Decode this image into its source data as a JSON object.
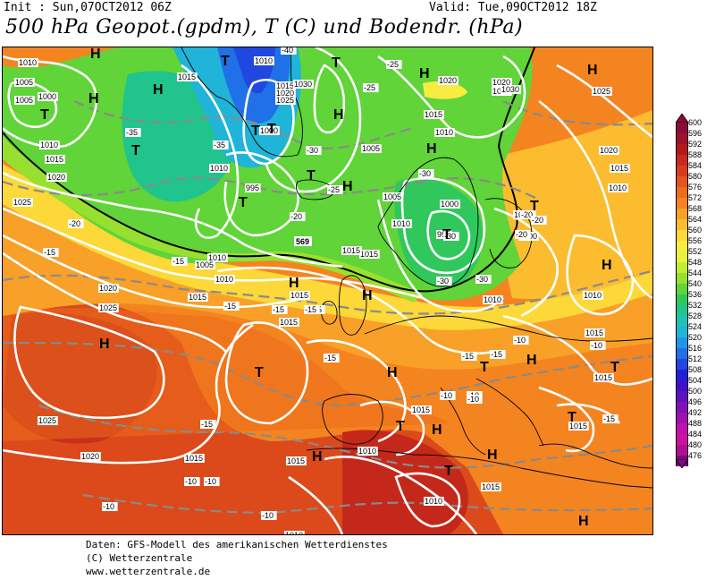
{
  "header": {
    "init": "Init : Sun,07OCT2012 06Z",
    "valid": "Valid: Tue,09OCT2012 18Z",
    "title": "500 hPa Geopot.(gpdm), T (C) und Bodendr. (hPa)"
  },
  "legend": {
    "levels": [
      "600",
      "596",
      "592",
      "588",
      "584",
      "580",
      "576",
      "572",
      "568",
      "564",
      "560",
      "556",
      "552",
      "548",
      "544",
      "540",
      "536",
      "532",
      "528",
      "524",
      "520",
      "516",
      "512",
      "508",
      "504",
      "500",
      "496",
      "492",
      "488",
      "484",
      "480",
      "476"
    ],
    "colors": [
      "#8b0a3a",
      "#a0102a",
      "#b41818",
      "#c82820",
      "#d83c1c",
      "#e4541c",
      "#ec6c1c",
      "#f48420",
      "#f8a028",
      "#fcbc30",
      "#fcd838",
      "#f8ec40",
      "#e8f43c",
      "#c4ec30",
      "#98e030",
      "#60d438",
      "#30c85c",
      "#20c48c",
      "#20c0b8",
      "#20b4d8",
      "#2094e8",
      "#2070e8",
      "#2048e0",
      "#2020d8",
      "#4010c8",
      "#6010c0",
      "#8010b8",
      "#a010b0",
      "#c010b0",
      "#d010a0",
      "#b01090",
      "#800880"
    ]
  },
  "map": {
    "pressure_labels": [
      "1010",
      "1005",
      "1000",
      "1010",
      "1015",
      "1020",
      "1025",
      "1015",
      "1010",
      "1005",
      "1000",
      "995",
      "1010",
      "1015",
      "1020",
      "1025",
      "1030",
      "1020",
      "1015",
      "1010",
      "1005",
      "1000",
      "995",
      "1005",
      "1010",
      "1015",
      "1020",
      "1025",
      "1030",
      "1025",
      "1020",
      "1015",
      "1010",
      "1005",
      "1000",
      "1015",
      "1010",
      "1005",
      "1010",
      "1015",
      "1020",
      "1025",
      "1015",
      "1015",
      "1010",
      "1010",
      "1015",
      "1010",
      "1015",
      "1020",
      "1025",
      "1015",
      "1015",
      "1015",
      "1015",
      "1010",
      "1015",
      "1010"
    ],
    "temp_labels": [
      "-40",
      "-35",
      "-35",
      "-30",
      "-30",
      "-25",
      "-25",
      "-25",
      "-20",
      "-20",
      "-20",
      "-25",
      "-30",
      "-30",
      "-30",
      "-20",
      "-20",
      "-15",
      "-15",
      "-15",
      "-15",
      "-15",
      "-15",
      "-10",
      "-15",
      "-15",
      "-10",
      "-15",
      "-10",
      "-10",
      "-15",
      "-10",
      "-10",
      "-10",
      "-10",
      "-10"
    ],
    "height_label": "569",
    "high_marks": [
      "H",
      "H",
      "H",
      "H",
      "H",
      "H",
      "H",
      "H",
      "H",
      "H",
      "H",
      "H",
      "H",
      "H",
      "H",
      "H",
      "H",
      "H"
    ],
    "low_marks": [
      "T",
      "T",
      "T",
      "T",
      "T",
      "T",
      "T",
      "T",
      "T",
      "T",
      "T",
      "T",
      "T",
      "T",
      "T",
      "T"
    ]
  },
  "footer": {
    "line1": "Daten: GFS-Modell des amerikanischen Wetterdienstes",
    "line2": "(C) Wetterzentrale",
    "line3": "www.wetterzentrale.de"
  }
}
